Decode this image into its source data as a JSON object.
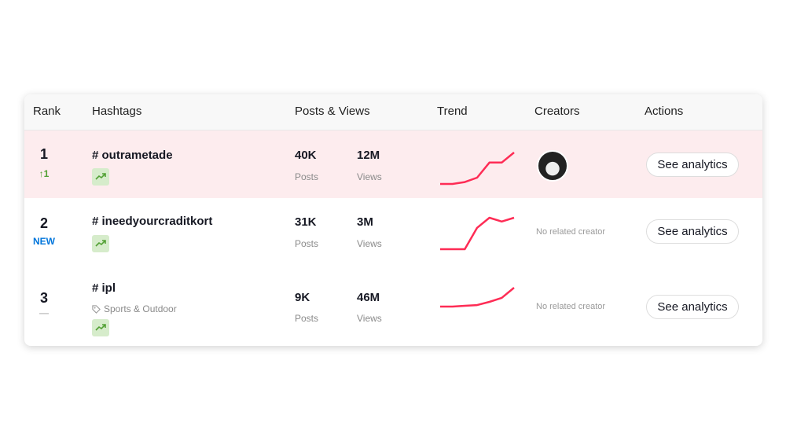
{
  "table": {
    "columns": [
      "Rank",
      "Hashtags",
      "Posts & Views",
      "Trend",
      "Creators",
      "Actions"
    ],
    "trend_color": "#fe2c55",
    "rows": [
      {
        "rank": "1",
        "change": "↑1",
        "change_color": "#52a034",
        "hashtag": "# outrametade",
        "category": null,
        "posts": "40K",
        "posts_label": "Posts",
        "views": "12M",
        "views_label": "Views",
        "trend": [
          0,
          0,
          0.06,
          0.2,
          0.68,
          0.68,
          1
        ],
        "creator": "avatar",
        "action": "See analytics",
        "highlighted": true
      },
      {
        "rank": "2",
        "change": "NEW",
        "change_color": "#0075db",
        "hashtag": "# ineedyourcraditkort",
        "category": null,
        "posts": "31K",
        "posts_label": "Posts",
        "views": "3M",
        "views_label": "Views",
        "trend": [
          0,
          0,
          0,
          0.68,
          1,
          0.88,
          1
        ],
        "creator": "No related creator",
        "action": "See analytics",
        "highlighted": false
      },
      {
        "rank": "3",
        "change": "—",
        "change_color": "#bbbbbb",
        "hashtag": "# ipl",
        "category": "Sports & Outdoor",
        "posts": "9K",
        "posts_label": "Posts",
        "views": "46M",
        "views_label": "Views",
        "trend": [
          0,
          0,
          0.04,
          0.08,
          0.25,
          0.46,
          1
        ],
        "creator": "No related creator",
        "action": "See analytics",
        "highlighted": false
      }
    ]
  }
}
